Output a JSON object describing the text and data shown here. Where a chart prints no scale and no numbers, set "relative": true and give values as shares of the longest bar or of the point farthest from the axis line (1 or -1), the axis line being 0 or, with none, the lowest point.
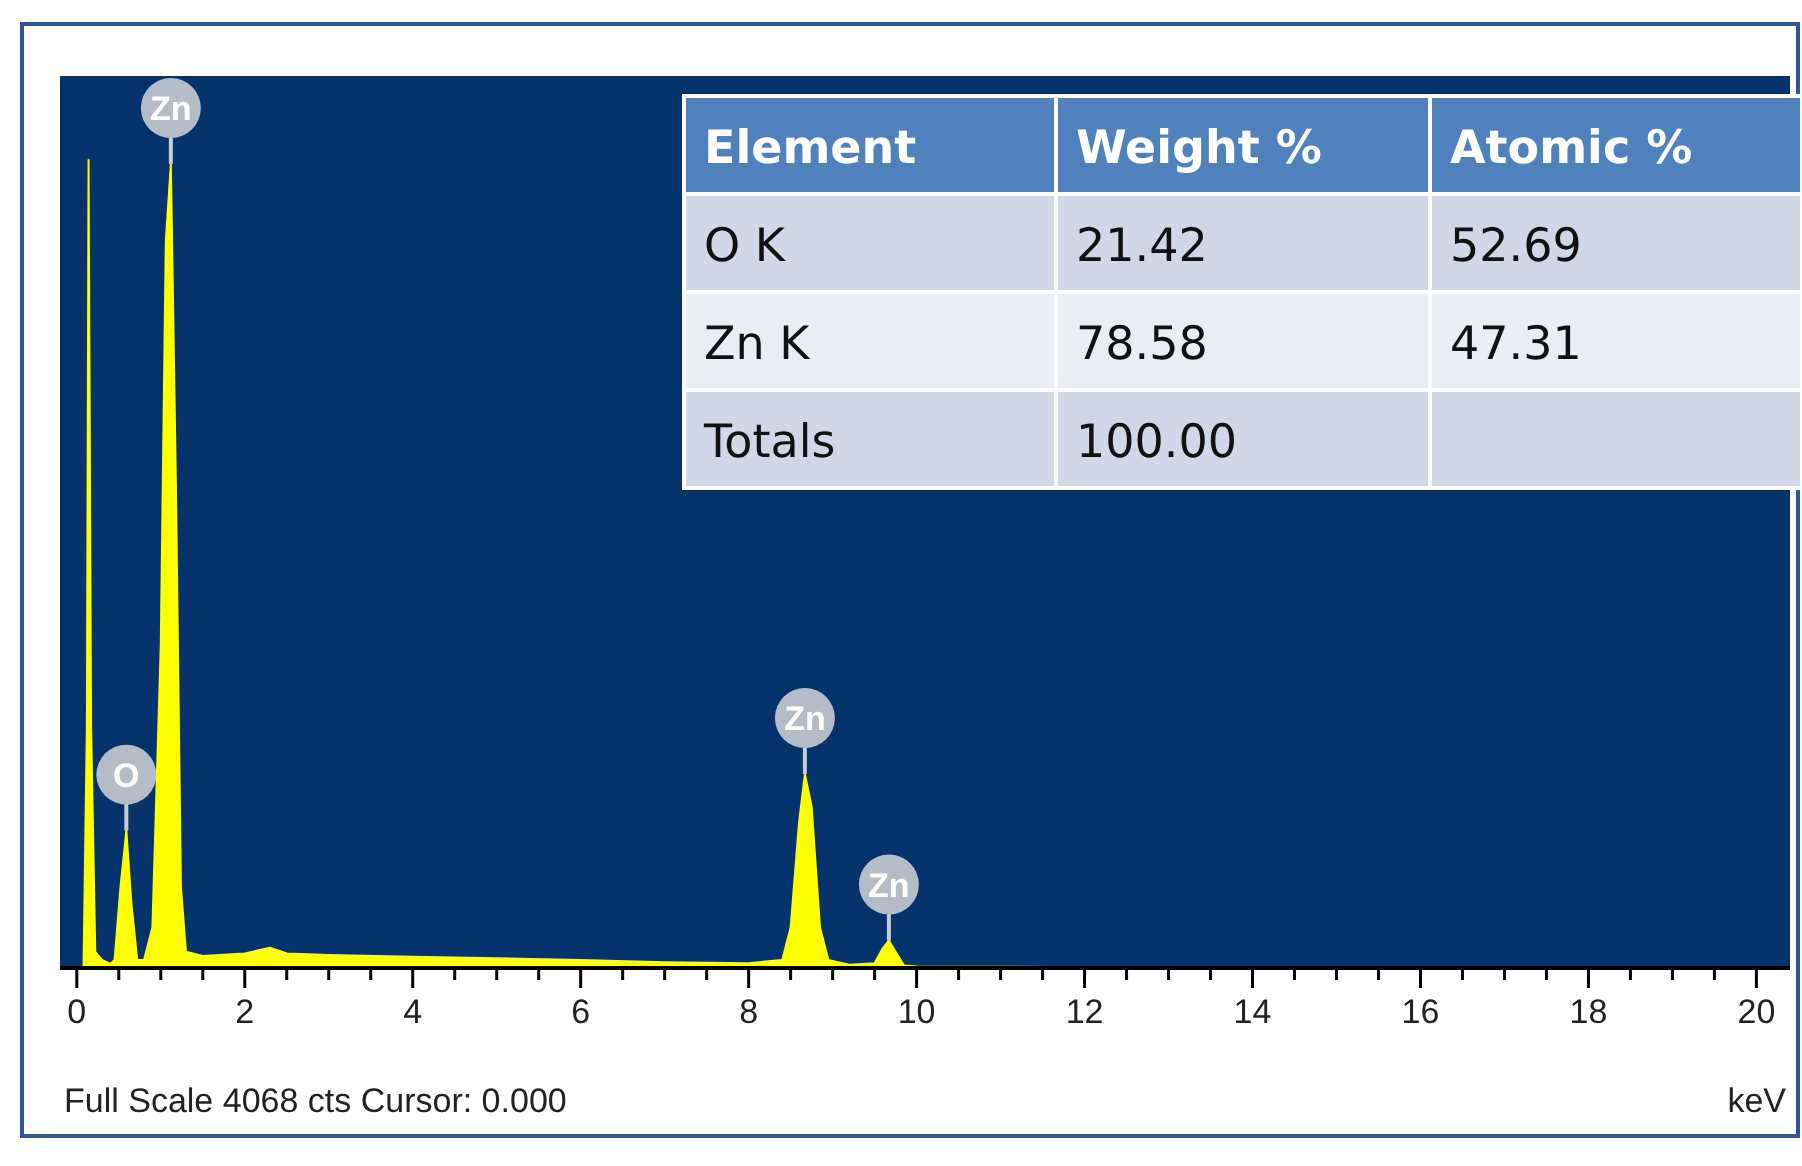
{
  "chart_data": {
    "type": "area",
    "relative": true,
    "xlabel": "keV",
    "xlim": [
      -0.2,
      20.4
    ],
    "xticks": [
      0,
      {
        "value": 0.5,
        "label": null
      },
      {
        "value": 1,
        "label": null
      },
      {
        "value": 1.5,
        "label": null
      },
      2,
      {
        "value": 2.5,
        "label": null
      },
      {
        "value": 3,
        "label": null
      },
      {
        "value": 3.5,
        "label": null
      },
      4,
      {
        "value": 4.5,
        "label": null
      },
      {
        "value": 5,
        "label": null
      },
      {
        "value": 5.5,
        "label": null
      },
      6,
      {
        "value": 6.5,
        "label": null
      },
      {
        "value": 7,
        "label": null
      },
      {
        "value": 7.5,
        "label": null
      },
      8,
      {
        "value": 8.5,
        "label": null
      },
      {
        "value": 9,
        "label": null
      },
      {
        "value": 9.5,
        "label": null
      },
      10,
      {
        "value": 10.5,
        "label": null
      },
      {
        "value": 11,
        "label": null
      },
      {
        "value": 11.5,
        "label": null
      },
      12,
      {
        "value": 12.5,
        "label": null
      },
      {
        "value": 13,
        "label": null
      },
      {
        "value": 13.5,
        "label": null
      },
      14,
      {
        "value": 14.5,
        "label": null
      },
      {
        "value": 15,
        "label": null
      },
      {
        "value": 15.5,
        "label": null
      },
      16,
      {
        "value": 16.5,
        "label": null
      },
      {
        "value": 17,
        "label": null
      },
      {
        "value": 17.5,
        "label": null
      },
      18,
      {
        "value": 18.5,
        "label": null
      },
      {
        "value": 19,
        "label": null
      },
      {
        "value": 19.5,
        "label": null
      },
      20
    ],
    "x": [
      0,
      0.08,
      0.12,
      0.14,
      0.17,
      0.22,
      0.3,
      0.4,
      0.45,
      0.52,
      0.59,
      0.65,
      0.72,
      0.8,
      0.9,
      1.0,
      1.06,
      1.12,
      1.18,
      1.24,
      1.3,
      1.5,
      2.0,
      2.3,
      2.5,
      3,
      4,
      5,
      6,
      7,
      8,
      8.4,
      8.5,
      8.6,
      8.67,
      8.75,
      8.85,
      8.95,
      9.2,
      9.5,
      9.6,
      9.67,
      9.75,
      9.85,
      10,
      12,
      20
    ],
    "series": [
      {
        "color": "#ffff00",
        "values": [
          0,
          0,
          0.3,
          1,
          0.3,
          0.02,
          0.01,
          0.005,
          0.01,
          0.1,
          0.17,
          0.08,
          0.01,
          0.01,
          0.05,
          0.4,
          0.9,
          0.995,
          0.6,
          0.1,
          0.02,
          0.015,
          0.018,
          0.025,
          0.018,
          0.016,
          0.014,
          0.012,
          0.01,
          0.007,
          0.006,
          0.01,
          0.05,
          0.18,
          0.24,
          0.2,
          0.05,
          0.01,
          0.004,
          0.006,
          0.025,
          0.034,
          0.02,
          0.003,
          0.002,
          0.001,
          0
        ]
      }
    ],
    "annotations": [
      {
        "text": "Zn",
        "x": 1.12,
        "y": 0.995
      },
      {
        "text": "O",
        "x": 0.59,
        "y": 0.17
      },
      {
        "text": "Zn",
        "x": 8.67,
        "y": 0.24
      },
      {
        "text": "Zn",
        "x": 9.67,
        "y": 0.034
      },
      "Element",
      "Weight %",
      "Atomic %",
      "O K",
      "21.42",
      "52.69",
      "Zn K",
      "78.58",
      "47.31",
      "Totals",
      "100.00",
      "Full Scale 4068 cts Cursor: 0.000"
    ]
  }
}
